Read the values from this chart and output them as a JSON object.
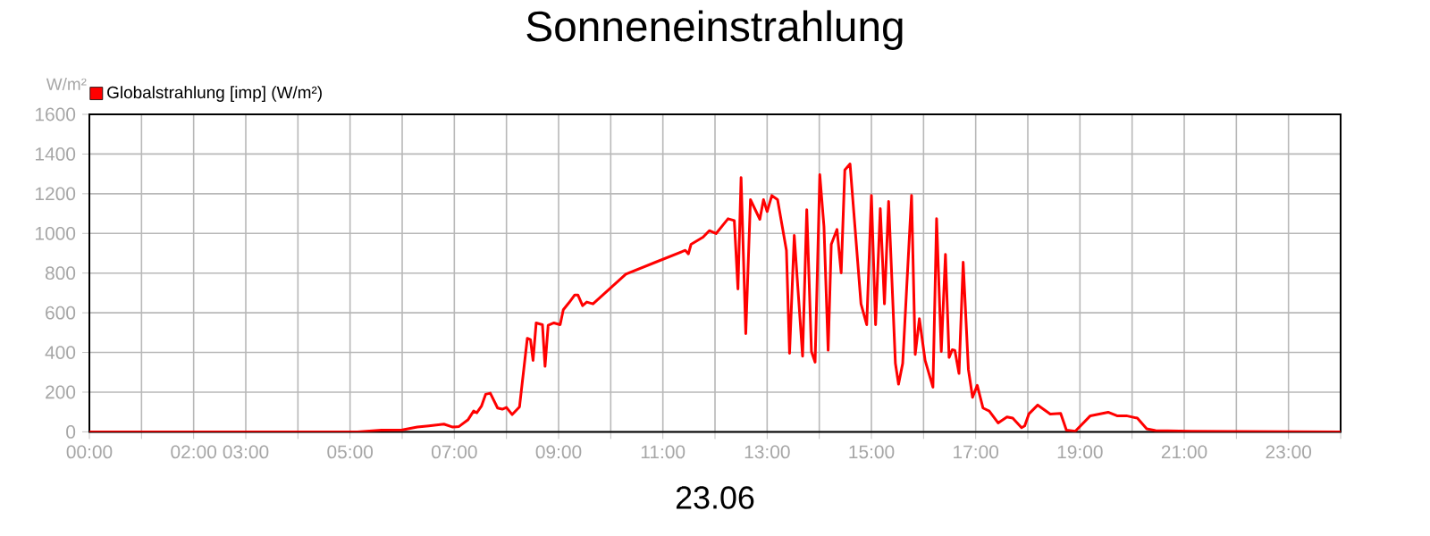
{
  "chart_data": {
    "type": "line",
    "title": "Sonneneinstrahlung",
    "xlabel": "23.06",
    "ylabel": "W/m²",
    "x": [
      0,
      5.14,
      5.6,
      6.0,
      6.29,
      6.51,
      6.8,
      6.97,
      7.09,
      7.26,
      7.37,
      7.43,
      7.52,
      7.6,
      7.69,
      7.83,
      7.92,
      8.0,
      8.11,
      8.25,
      8.4,
      8.46,
      8.51,
      8.57,
      8.69,
      8.74,
      8.8,
      8.91,
      9.03,
      9.09,
      9.2,
      9.31,
      9.37,
      9.46,
      9.54,
      9.66,
      10.29,
      10.86,
      11.43,
      11.49,
      11.54,
      11.77,
      11.89,
      12.02,
      12.25,
      12.37,
      12.44,
      12.5,
      12.59,
      12.68,
      12.86,
      12.93,
      13.0,
      13.09,
      13.2,
      13.37,
      13.43,
      13.52,
      13.68,
      13.76,
      13.85,
      13.92,
      14.01,
      14.09,
      14.17,
      14.23,
      14.34,
      14.42,
      14.49,
      14.59,
      14.8,
      14.91,
      15.0,
      15.08,
      15.17,
      15.25,
      15.33,
      15.46,
      15.52,
      15.6,
      15.77,
      15.84,
      15.92,
      16.03,
      16.18,
      16.25,
      16.34,
      16.42,
      16.49,
      16.55,
      16.6,
      16.68,
      16.76,
      16.86,
      16.94,
      17.03,
      17.14,
      17.26,
      17.43,
      17.6,
      17.71,
      17.88,
      17.94,
      18.02,
      18.19,
      18.43,
      18.63,
      18.74,
      18.91,
      19.2,
      19.54,
      19.71,
      19.89,
      20.1,
      20.28,
      20.45,
      21.14,
      24
    ],
    "series": [
      {
        "name": "Globalstrahlung [imp] (W/m²)",
        "color": "#ff0000",
        "values": [
          0,
          0,
          9,
          10,
          24,
          30,
          39,
          24,
          27,
          60,
          105,
          96,
          129,
          189,
          195,
          120,
          114,
          123,
          87,
          126,
          471,
          465,
          360,
          549,
          540,
          330,
          537,
          549,
          540,
          615,
          651,
          690,
          690,
          636,
          654,
          645,
          795,
          855,
          915,
          897,
          945,
          981,
          1014,
          999,
          1074,
          1065,
          720,
          1281,
          495,
          1170,
          1071,
          1170,
          1110,
          1191,
          1170,
          915,
          396,
          990,
          381,
          1119,
          405,
          351,
          1296,
          1035,
          411,
          945,
          1020,
          801,
          1320,
          1350,
          645,
          540,
          1191,
          540,
          1125,
          645,
          1161,
          345,
          240,
          345,
          1191,
          390,
          570,
          360,
          225,
          1074,
          405,
          894,
          375,
          414,
          411,
          294,
          855,
          315,
          174,
          234,
          120,
          105,
          45,
          75,
          69,
          21,
          30,
          90,
          135,
          90,
          93,
          9,
          3,
          81,
          99,
          81,
          81,
          69,
          15,
          6,
          3,
          0
        ]
      }
    ],
    "xlim": [
      0,
      24
    ],
    "ylim": [
      0,
      1600
    ],
    "xticks": [
      {
        "value": 0,
        "label": "00:00"
      },
      {
        "value": 1,
        "label": null
      },
      {
        "value": 2,
        "label": "02:00"
      },
      {
        "value": 3,
        "label": "03:00"
      },
      {
        "value": 4,
        "label": null
      },
      {
        "value": 5,
        "label": "05:00"
      },
      {
        "value": 6,
        "label": null
      },
      {
        "value": 7,
        "label": "07:00"
      },
      {
        "value": 8,
        "label": null
      },
      {
        "value": 9,
        "label": "09:00"
      },
      {
        "value": 10,
        "label": null
      },
      {
        "value": 11,
        "label": "11:00"
      },
      {
        "value": 12,
        "label": null
      },
      {
        "value": 13,
        "label": "13:00"
      },
      {
        "value": 14,
        "label": null
      },
      {
        "value": 15,
        "label": "15:00"
      },
      {
        "value": 16,
        "label": null
      },
      {
        "value": 17,
        "label": "17:00"
      },
      {
        "value": 18,
        "label": null
      },
      {
        "value": 19,
        "label": "19:00"
      },
      {
        "value": 20,
        "label": null
      },
      {
        "value": 21,
        "label": "21:00"
      },
      {
        "value": 22,
        "label": null
      },
      {
        "value": 23,
        "label": "23:00"
      },
      {
        "value": 24,
        "label": null
      }
    ],
    "yticks": [
      0,
      200,
      400,
      600,
      800,
      1000,
      1200,
      1400,
      1600
    ],
    "grid": true,
    "legend": "top left"
  }
}
